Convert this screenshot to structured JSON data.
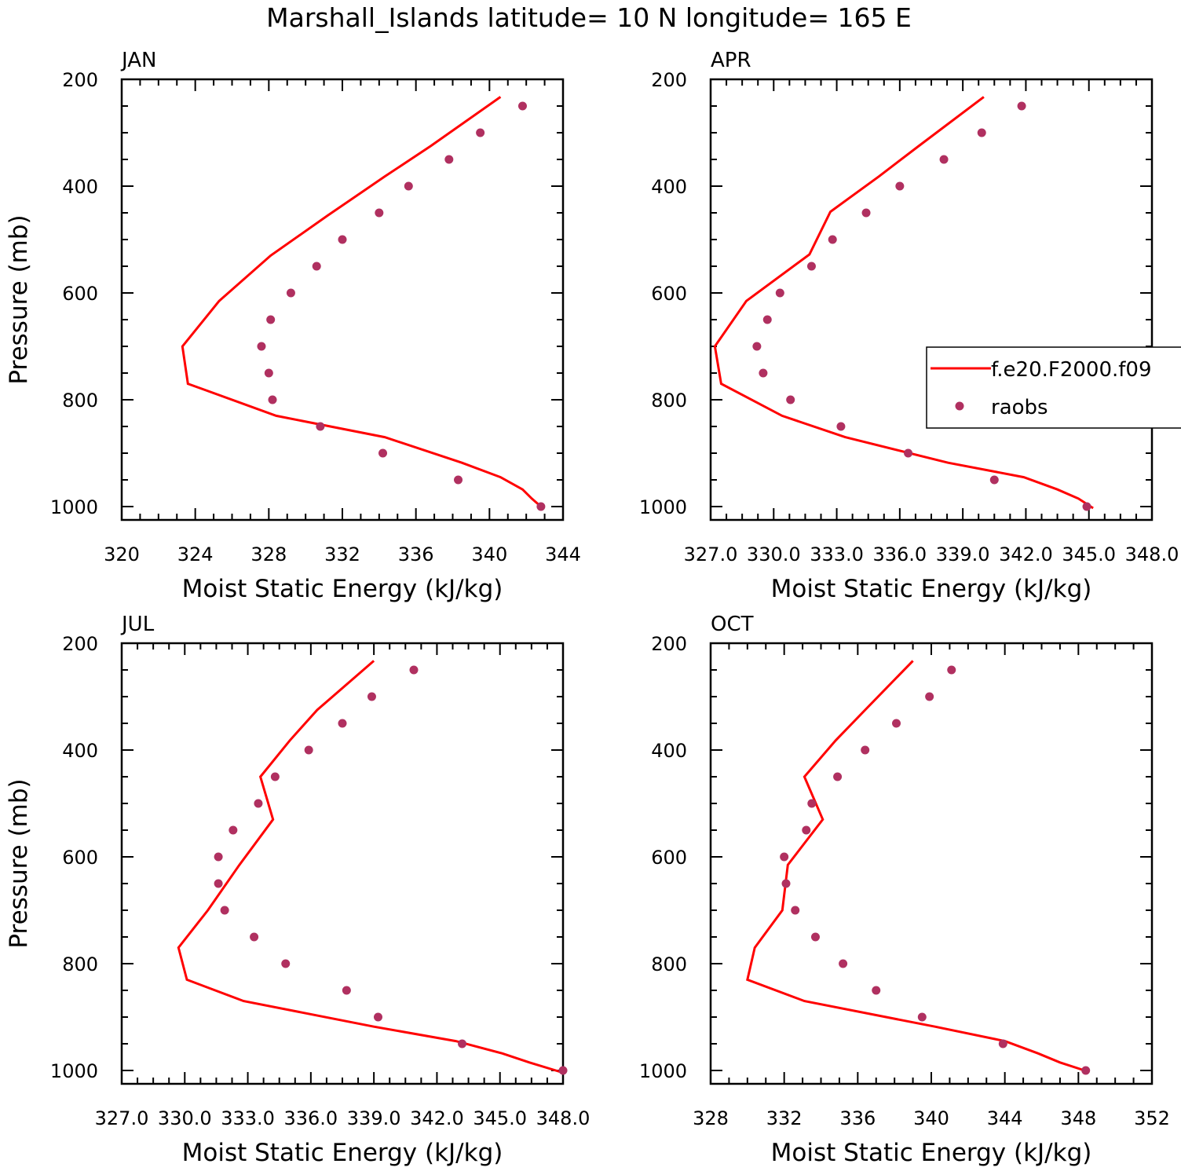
{
  "figure": {
    "title": "Marshall_Islands  latitude= 10 N longitude= 165 E",
    "colors": {
      "model": "#ff0000",
      "obs": "#b03060",
      "axes": "#000000"
    }
  },
  "legend": {
    "placement": "right side of APR panel, clipped by figure edge",
    "entries": [
      {
        "label": "f.e20.F2000.f09",
        "style": "line",
        "color": "#ff0000"
      },
      {
        "label": "raobs",
        "style": "marker",
        "color": "#b03060"
      }
    ]
  },
  "chart_data": [
    {
      "type": "line",
      "panel_label": "JAN",
      "xlabel": "Moist Static Energy (kJ/kg)",
      "ylabel": "Pressure (mb)",
      "xlim": [
        320,
        344
      ],
      "ylim": [
        1000,
        200
      ],
      "y_scale": "linear, inverted",
      "x_ticks": [
        "320",
        "324",
        "328",
        "332",
        "336",
        "340",
        "344"
      ],
      "x_tick_values": [
        320,
        324,
        328,
        332,
        336,
        340,
        344
      ],
      "y_ticks": [
        "200",
        "400",
        "600",
        "800",
        "1000"
      ],
      "y_tick_values": [
        200,
        400,
        600,
        800,
        1000
      ],
      "series": [
        {
          "name": "f.e20.F2000.f09",
          "kind": "line",
          "pressure": [
            233,
            325,
            382,
            455,
            530,
            615,
            700,
            770,
            830,
            870,
            918,
            945,
            968,
            985,
            1003
          ],
          "mse": [
            340.6,
            336.8,
            334.3,
            331.2,
            328.1,
            325.3,
            323.3,
            323.6,
            328.4,
            334.3,
            338.5,
            340.6,
            341.8,
            342.3,
            342.9
          ]
        },
        {
          "name": "raobs",
          "kind": "scatter",
          "pressure": [
            250,
            300,
            350,
            400,
            450,
            500,
            550,
            600,
            650,
            700,
            750,
            800,
            850,
            900,
            950,
            1000
          ],
          "mse": [
            341.8,
            339.5,
            337.8,
            335.6,
            334.0,
            332.0,
            330.6,
            329.2,
            328.1,
            327.6,
            328.0,
            328.2,
            330.8,
            334.2,
            338.3,
            342.8
          ]
        }
      ]
    },
    {
      "type": "line",
      "panel_label": "APR",
      "xlabel": "Moist Static Energy (kJ/kg)",
      "ylabel": "",
      "xlim": [
        327.0,
        348.0
      ],
      "ylim": [
        1000,
        200
      ],
      "y_scale": "linear, inverted",
      "x_ticks": [
        "327.0",
        "330.0",
        "333.0",
        "336.0",
        "339.0",
        "342.0",
        "345.0",
        "348.0"
      ],
      "x_tick_values": [
        327,
        330,
        333,
        336,
        339,
        342,
        345,
        348
      ],
      "y_ticks": [
        "200",
        "400",
        "600",
        "800",
        "1000"
      ],
      "y_tick_values": [
        200,
        400,
        600,
        800,
        1000
      ],
      "series": [
        {
          "name": "f.e20.F2000.f09",
          "kind": "line",
          "pressure": [
            233,
            325,
            382,
            448,
            528,
            615,
            700,
            770,
            830,
            870,
            918,
            945,
            968,
            985,
            1003
          ],
          "mse": [
            340.0,
            336.9,
            335.0,
            332.7,
            331.7,
            328.7,
            327.2,
            327.5,
            330.4,
            333.4,
            338.3,
            341.9,
            343.5,
            344.5,
            345.2
          ]
        },
        {
          "name": "raobs",
          "kind": "scatter",
          "pressure": [
            250,
            300,
            350,
            400,
            450,
            500,
            550,
            600,
            650,
            700,
            750,
            800,
            850,
            900,
            950,
            1000
          ],
          "mse": [
            341.8,
            339.9,
            338.1,
            336.0,
            334.4,
            332.8,
            331.8,
            330.3,
            329.7,
            329.2,
            329.5,
            330.8,
            333.2,
            336.4,
            340.5,
            344.9
          ]
        }
      ]
    },
    {
      "type": "line",
      "panel_label": "JUL",
      "xlabel": "Moist Static Energy (kJ/kg)",
      "ylabel": "Pressure (mb)",
      "xlim": [
        327.0,
        348.0
      ],
      "ylim": [
        1000,
        200
      ],
      "y_scale": "linear, inverted",
      "x_ticks": [
        "327.0",
        "330.0",
        "333.0",
        "336.0",
        "339.0",
        "342.0",
        "345.0",
        "348.0"
      ],
      "x_tick_values": [
        327,
        330,
        333,
        336,
        339,
        342,
        345,
        348
      ],
      "y_ticks": [
        "200",
        "400",
        "600",
        "800",
        "1000"
      ],
      "y_tick_values": [
        200,
        400,
        600,
        800,
        1000
      ],
      "series": [
        {
          "name": "f.e20.F2000.f09",
          "kind": "line",
          "pressure": [
            233,
            325,
            382,
            450,
            530,
            615,
            700,
            770,
            830,
            870,
            918,
            945,
            968,
            985,
            1003
          ],
          "mse": [
            339.0,
            336.3,
            335.0,
            333.6,
            334.2,
            332.6,
            331.1,
            329.7,
            330.1,
            332.8,
            339.0,
            342.9,
            345.1,
            346.4,
            347.9
          ]
        },
        {
          "name": "raobs",
          "kind": "scatter",
          "pressure": [
            250,
            300,
            350,
            400,
            450,
            500,
            550,
            600,
            650,
            700,
            750,
            800,
            850,
            900,
            950,
            1000
          ],
          "mse": [
            340.9,
            338.9,
            337.5,
            335.9,
            334.3,
            333.5,
            332.3,
            331.6,
            331.6,
            331.9,
            333.3,
            334.8,
            337.7,
            339.2,
            343.2,
            348.0
          ]
        }
      ]
    },
    {
      "type": "line",
      "panel_label": "OCT",
      "xlabel": "Moist Static Energy (kJ/kg)",
      "ylabel": "",
      "xlim": [
        328,
        352
      ],
      "ylim": [
        1000,
        200
      ],
      "y_scale": "linear, inverted",
      "x_ticks": [
        "328",
        "332",
        "336",
        "340",
        "344",
        "348",
        "352"
      ],
      "x_tick_values": [
        328,
        332,
        336,
        340,
        344,
        348,
        352
      ],
      "y_ticks": [
        "200",
        "400",
        "600",
        "800",
        "1000"
      ],
      "y_tick_values": [
        200,
        400,
        600,
        800,
        1000
      ],
      "series": [
        {
          "name": "f.e20.F2000.f09",
          "kind": "line",
          "pressure": [
            233,
            325,
            382,
            450,
            530,
            615,
            700,
            770,
            830,
            870,
            918,
            945,
            968,
            985,
            1003
          ],
          "mse": [
            339.0,
            336.4,
            334.8,
            333.1,
            334.1,
            332.2,
            331.9,
            330.4,
            330.0,
            333.1,
            340.2,
            344.0,
            345.8,
            347.0,
            348.6
          ]
        },
        {
          "name": "raobs",
          "kind": "scatter",
          "pressure": [
            250,
            300,
            350,
            400,
            450,
            500,
            550,
            600,
            650,
            700,
            750,
            800,
            850,
            900,
            950,
            1000
          ],
          "mse": [
            341.1,
            339.9,
            338.1,
            336.4,
            334.9,
            333.5,
            333.2,
            332.0,
            332.1,
            332.6,
            333.7,
            335.2,
            337.0,
            339.5,
            343.9,
            348.4
          ]
        }
      ]
    }
  ]
}
